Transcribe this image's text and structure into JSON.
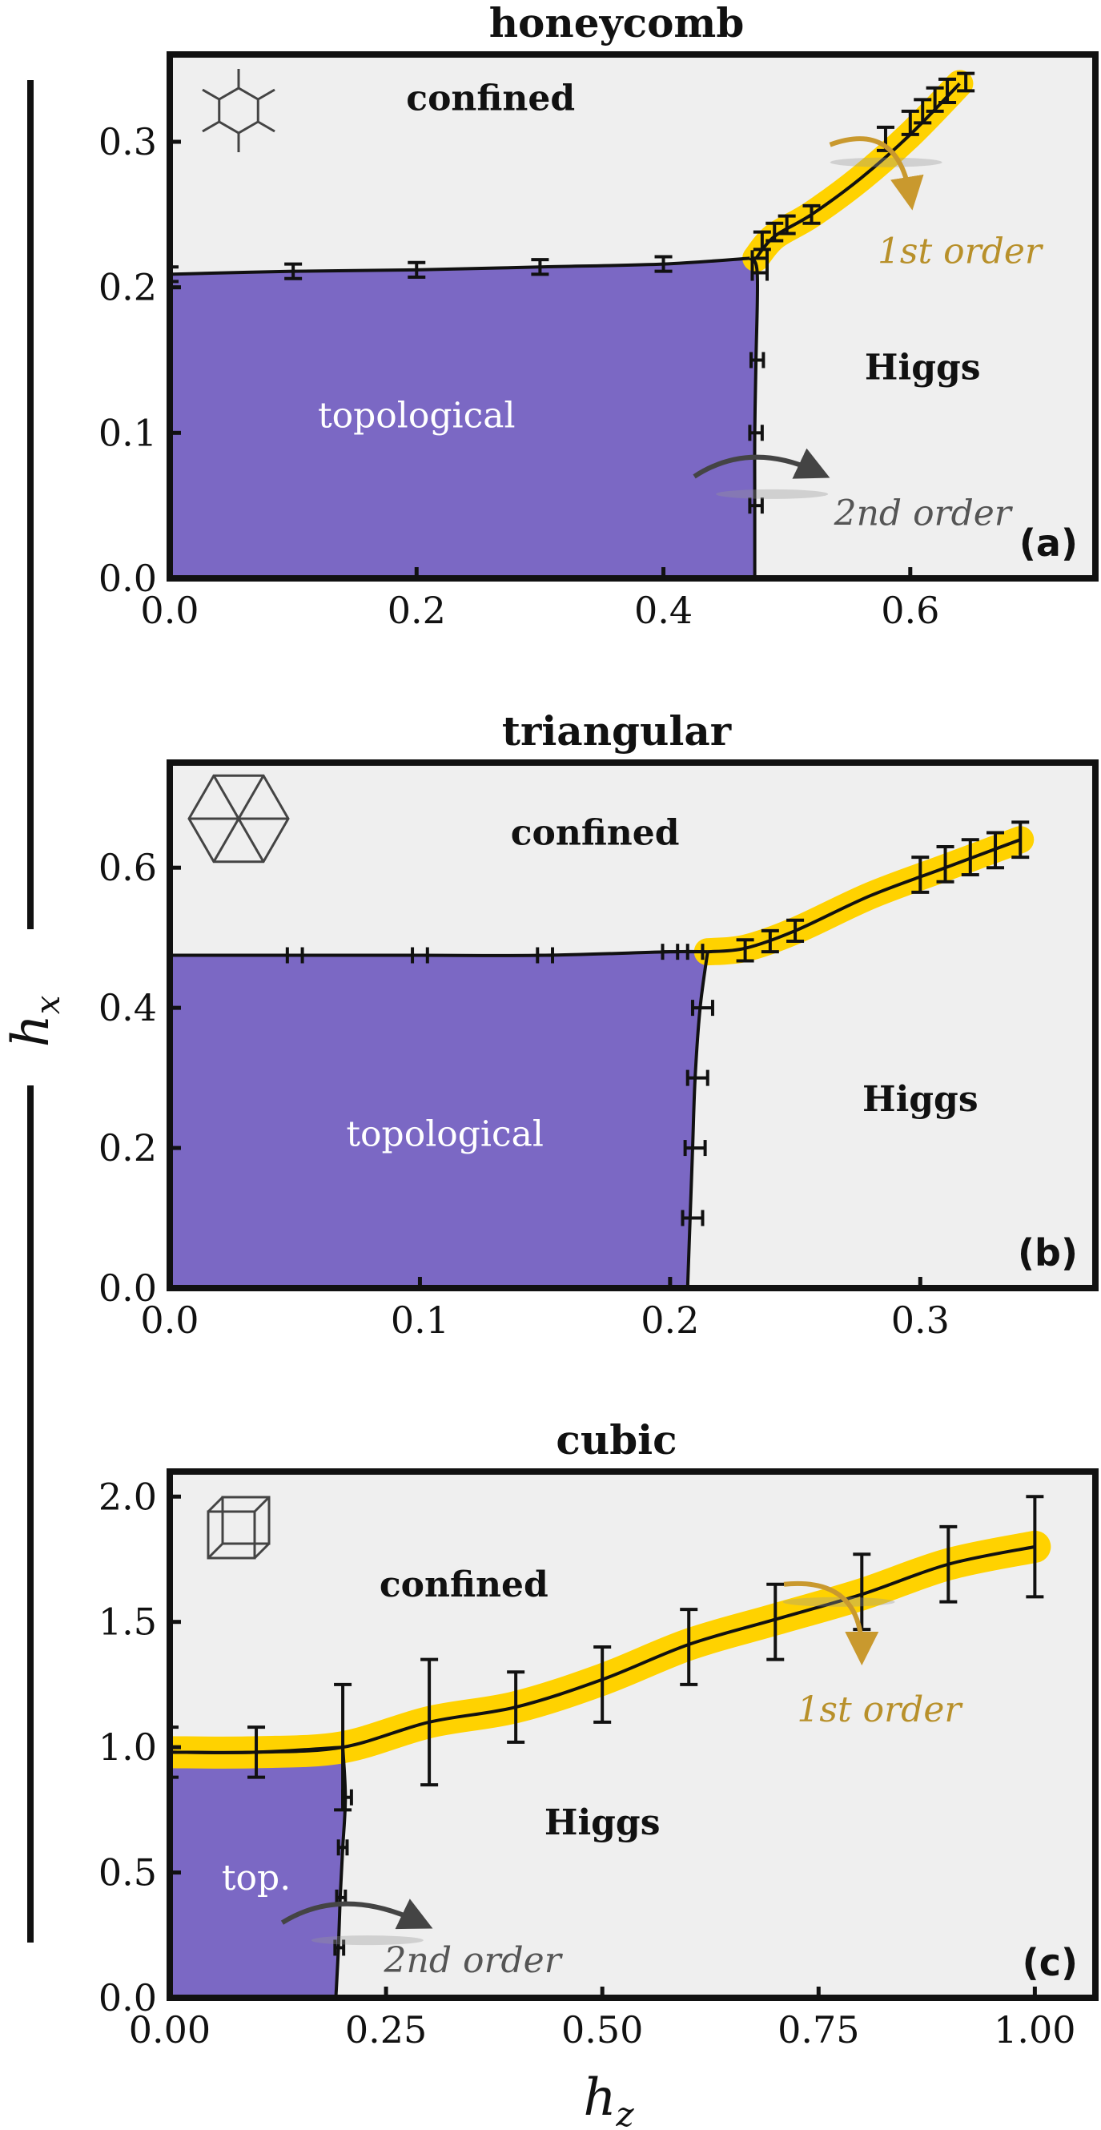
{
  "axes": {
    "xlabel": "h",
    "xlabel_sub": "z",
    "ylabel": "h",
    "ylabel_sub": "x"
  },
  "colors": {
    "topological": "#7b68c4",
    "background": "#efefef",
    "first_order": "#ffd200",
    "first_label": "#b8902a",
    "second_label": "#555555"
  },
  "chart_data": [
    {
      "type": "area",
      "title": "honeycomb",
      "panel_label": "(a)",
      "lattice_icon": "honeycomb-lattice-icon",
      "xlim": [
        0,
        0.75
      ],
      "ylim": [
        0,
        0.36
      ],
      "x_ticks": [
        0.0,
        0.2,
        0.4,
        0.6
      ],
      "x_tick_labels": [
        "0.0",
        "0.2",
        "0.4",
        "0.6"
      ],
      "y_ticks": [
        0.0,
        0.1,
        0.2,
        0.3
      ],
      "y_tick_labels": [
        "0.0",
        "0.1",
        "0.2",
        "0.3"
      ],
      "regions": {
        "confined": "confined",
        "higgs": "Higgs",
        "topological": "topological"
      },
      "region_label_pos": {
        "confined": [
          0.26,
          0.33
        ],
        "higgs": [
          0.61,
          0.145
        ],
        "topological": [
          0.2,
          0.112
        ]
      },
      "orders": {
        "first": "1st order",
        "second": "2nd order"
      },
      "order_label_pos": {
        "first": [
          0.64,
          0.225
        ],
        "second": [
          0.61,
          0.045
        ]
      },
      "arrow_first": {
        "from": [
          0.535,
          0.298
        ],
        "ctrl": [
          0.59,
          0.315
        ],
        "to": [
          0.6,
          0.262
        ]
      },
      "arrow_second": {
        "from": [
          0.425,
          0.07
        ],
        "ctrl": [
          0.47,
          0.095
        ],
        "to": [
          0.525,
          0.073
        ]
      },
      "boundary_top": [
        [
          0.0,
          0.209
        ],
        [
          0.1,
          0.211
        ],
        [
          0.2,
          0.212
        ],
        [
          0.3,
          0.214
        ],
        [
          0.4,
          0.216
        ],
        [
          0.47,
          0.22
        ]
      ],
      "boundary_vertical": [
        [
          0.47,
          0.22
        ],
        [
          0.476,
          0.21
        ],
        [
          0.475,
          0.15
        ],
        [
          0.474,
          0.1
        ],
        [
          0.474,
          0.05
        ],
        [
          0.474,
          0.0
        ]
      ],
      "first_order_line": [
        [
          0.475,
          0.22
        ],
        [
          0.49,
          0.235
        ],
        [
          0.52,
          0.25
        ],
        [
          0.56,
          0.275
        ],
        [
          0.6,
          0.305
        ],
        [
          0.64,
          0.34
        ]
      ],
      "errorbars_y": [
        {
          "x": 0.0,
          "y": 0.209,
          "err": 0.005
        },
        {
          "x": 0.1,
          "y": 0.211,
          "err": 0.005
        },
        {
          "x": 0.2,
          "y": 0.212,
          "err": 0.005
        },
        {
          "x": 0.3,
          "y": 0.214,
          "err": 0.005
        },
        {
          "x": 0.4,
          "y": 0.216,
          "err": 0.005
        },
        {
          "x": 0.48,
          "y": 0.232,
          "err": 0.006
        },
        {
          "x": 0.49,
          "y": 0.238,
          "err": 0.006
        },
        {
          "x": 0.5,
          "y": 0.243,
          "err": 0.006
        },
        {
          "x": 0.52,
          "y": 0.25,
          "err": 0.006
        },
        {
          "x": 0.58,
          "y": 0.302,
          "err": 0.008
        },
        {
          "x": 0.6,
          "y": 0.313,
          "err": 0.008
        },
        {
          "x": 0.61,
          "y": 0.321,
          "err": 0.008
        },
        {
          "x": 0.62,
          "y": 0.329,
          "err": 0.008
        },
        {
          "x": 0.63,
          "y": 0.335,
          "err": 0.008
        },
        {
          "x": 0.645,
          "y": 0.341,
          "err": 0.006
        }
      ],
      "errorbars_x": [
        {
          "x": 0.478,
          "y": 0.22,
          "err": 0.006
        },
        {
          "x": 0.478,
          "y": 0.21,
          "err": 0.006
        },
        {
          "x": 0.476,
          "y": 0.15,
          "err": 0.005
        },
        {
          "x": 0.475,
          "y": 0.1,
          "err": 0.005
        },
        {
          "x": 0.475,
          "y": 0.05,
          "err": 0.005
        }
      ]
    },
    {
      "type": "area",
      "title": "triangular",
      "panel_label": "(b)",
      "lattice_icon": "triangular-lattice-icon",
      "xlim": [
        0,
        0.37
      ],
      "ylim": [
        0,
        0.75
      ],
      "x_ticks": [
        0.0,
        0.1,
        0.2,
        0.3
      ],
      "x_tick_labels": [
        "0.0",
        "0.1",
        "0.2",
        "0.3"
      ],
      "y_ticks": [
        0.0,
        0.2,
        0.4,
        0.6
      ],
      "y_tick_labels": [
        "0.0",
        "0.2",
        "0.4",
        "0.6"
      ],
      "regions": {
        "confined": "confined",
        "higgs": "Higgs",
        "topological": "topological"
      },
      "region_label_pos": {
        "confined": [
          0.17,
          0.65
        ],
        "higgs": [
          0.3,
          0.27
        ],
        "topological": [
          0.11,
          0.22
        ]
      },
      "orders": {
        "first": "",
        "second": ""
      },
      "boundary_top": [
        [
          0.0,
          0.475
        ],
        [
          0.05,
          0.475
        ],
        [
          0.1,
          0.475
        ],
        [
          0.15,
          0.475
        ],
        [
          0.2,
          0.48
        ],
        [
          0.215,
          0.48
        ]
      ],
      "boundary_vertical": [
        [
          0.215,
          0.48
        ],
        [
          0.212,
          0.4
        ],
        [
          0.21,
          0.3
        ],
        [
          0.209,
          0.2
        ],
        [
          0.208,
          0.1
        ],
        [
          0.207,
          0.0
        ]
      ],
      "first_order_line": [
        [
          0.215,
          0.48
        ],
        [
          0.23,
          0.485
        ],
        [
          0.25,
          0.51
        ],
        [
          0.28,
          0.56
        ],
        [
          0.31,
          0.6
        ],
        [
          0.34,
          0.64
        ]
      ],
      "errorbars_y": [
        {
          "x": 0.23,
          "y": 0.482,
          "err": 0.015
        },
        {
          "x": 0.24,
          "y": 0.495,
          "err": 0.015
        },
        {
          "x": 0.25,
          "y": 0.51,
          "err": 0.015
        },
        {
          "x": 0.3,
          "y": 0.59,
          "err": 0.025
        },
        {
          "x": 0.31,
          "y": 0.605,
          "err": 0.025
        },
        {
          "x": 0.32,
          "y": 0.615,
          "err": 0.025
        },
        {
          "x": 0.33,
          "y": 0.625,
          "err": 0.025
        },
        {
          "x": 0.34,
          "y": 0.64,
          "err": 0.025
        }
      ],
      "errorbars_x": [
        {
          "x": 0.05,
          "y": 0.475,
          "err": 0.003
        },
        {
          "x": 0.1,
          "y": 0.475,
          "err": 0.003
        },
        {
          "x": 0.15,
          "y": 0.475,
          "err": 0.003
        },
        {
          "x": 0.2,
          "y": 0.48,
          "err": 0.003
        },
        {
          "x": 0.21,
          "y": 0.48,
          "err": 0.003
        },
        {
          "x": 0.213,
          "y": 0.4,
          "err": 0.004
        },
        {
          "x": 0.211,
          "y": 0.3,
          "err": 0.004
        },
        {
          "x": 0.21,
          "y": 0.2,
          "err": 0.004
        },
        {
          "x": 0.209,
          "y": 0.1,
          "err": 0.004
        }
      ]
    },
    {
      "type": "area",
      "title": "cubic",
      "panel_label": "(c)",
      "lattice_icon": "cubic-lattice-icon",
      "xlim": [
        0,
        1.07
      ],
      "ylim": [
        0,
        2.1
      ],
      "x_ticks": [
        0.0,
        0.25,
        0.5,
        0.75,
        1.0
      ],
      "x_tick_labels": [
        "0.00",
        "0.25",
        "0.50",
        "0.75",
        "1.00"
      ],
      "y_ticks": [
        0.0,
        0.5,
        1.0,
        1.5,
        2.0
      ],
      "y_tick_labels": [
        "0.0",
        "0.5",
        "1.0",
        "1.5",
        "2.0"
      ],
      "regions": {
        "confined": "confined",
        "higgs": "Higgs",
        "topological": "top."
      },
      "region_label_pos": {
        "confined": [
          0.34,
          1.65
        ],
        "higgs": [
          0.5,
          0.7
        ],
        "topological": [
          0.1,
          0.48
        ]
      },
      "orders": {
        "first": "1st order",
        "second": "2nd order"
      },
      "order_label_pos": {
        "first": [
          0.82,
          1.15
        ],
        "second": [
          0.35,
          0.15
        ]
      },
      "arrow_first": {
        "from": [
          0.71,
          1.65
        ],
        "ctrl": [
          0.8,
          1.68
        ],
        "to": [
          0.8,
          1.38
        ]
      },
      "arrow_second": {
        "from": [
          0.13,
          0.3
        ],
        "ctrl": [
          0.2,
          0.45
        ],
        "to": [
          0.29,
          0.3
        ]
      },
      "boundary_top": [
        [
          0.0,
          0.98
        ],
        [
          0.1,
          0.98
        ],
        [
          0.2,
          1.0
        ]
      ],
      "boundary_vertical": [
        [
          0.2,
          1.0
        ],
        [
          0.203,
          0.8
        ],
        [
          0.2,
          0.6
        ],
        [
          0.197,
          0.4
        ],
        [
          0.195,
          0.2
        ],
        [
          0.192,
          0.0
        ]
      ],
      "first_order_line": [
        [
          0.0,
          0.98
        ],
        [
          0.1,
          0.98
        ],
        [
          0.2,
          1.0
        ],
        [
          0.3,
          1.1
        ],
        [
          0.4,
          1.16
        ],
        [
          0.5,
          1.27
        ],
        [
          0.6,
          1.41
        ],
        [
          0.7,
          1.51
        ],
        [
          0.8,
          1.61
        ],
        [
          0.9,
          1.73
        ],
        [
          1.0,
          1.8
        ]
      ],
      "errorbars_y": [
        {
          "x": 0.0,
          "y": 0.98,
          "err": 0.1
        },
        {
          "x": 0.1,
          "y": 0.98,
          "err": 0.1
        },
        {
          "x": 0.2,
          "y": 1.0,
          "err": 0.25
        },
        {
          "x": 0.3,
          "y": 1.1,
          "err": 0.25
        },
        {
          "x": 0.4,
          "y": 1.16,
          "err": 0.14
        },
        {
          "x": 0.5,
          "y": 1.25,
          "err": 0.15
        },
        {
          "x": 0.6,
          "y": 1.4,
          "err": 0.15
        },
        {
          "x": 0.7,
          "y": 1.5,
          "err": 0.15
        },
        {
          "x": 0.8,
          "y": 1.62,
          "err": 0.15
        },
        {
          "x": 0.9,
          "y": 1.73,
          "err": 0.15
        },
        {
          "x": 1.0,
          "y": 1.8,
          "err": 0.2
        }
      ],
      "errorbars_x": [
        {
          "x": 0.205,
          "y": 0.8,
          "err": 0.005
        },
        {
          "x": 0.2,
          "y": 0.6,
          "err": 0.005
        },
        {
          "x": 0.198,
          "y": 0.4,
          "err": 0.005
        },
        {
          "x": 0.196,
          "y": 0.2,
          "err": 0.005
        }
      ]
    }
  ]
}
